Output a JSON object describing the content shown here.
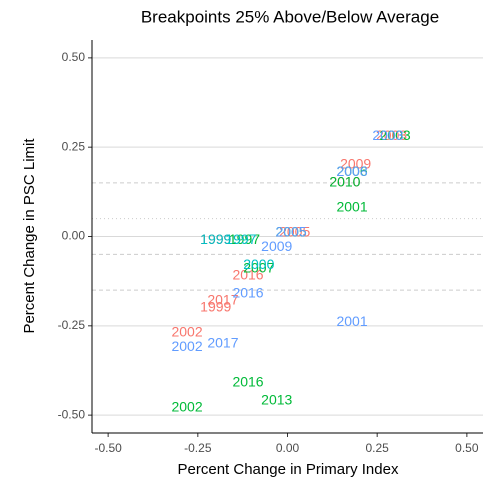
{
  "chart_data": {
    "type": "text-scatter",
    "title": "Breakpoints 25% Above/Below Average",
    "x_label": "Percent Change in Primary Index",
    "y_label": "Percent Change in PSC Limit",
    "xlim": [
      -0.545,
      0.545
    ],
    "ylim": [
      -0.55,
      0.55
    ],
    "xticks": [
      {
        "value": -0.5,
        "label": "-0.50"
      },
      {
        "value": -0.25,
        "label": "-0.25"
      },
      {
        "value": 0,
        "label": "0.00"
      },
      {
        "value": 0.25,
        "label": "0.25"
      },
      {
        "value": 0.5,
        "label": "0.50"
      }
    ],
    "yticks": [
      {
        "value": -0.5,
        "label": "-0.50"
      },
      {
        "value": -0.25,
        "label": "-0.25"
      },
      {
        "value": 0,
        "label": "0.00"
      },
      {
        "value": 0.25,
        "label": "0.25"
      },
      {
        "value": 0.5,
        "label": "0.50"
      }
    ],
    "grid": true,
    "reference_lines": [
      {
        "value": 0.15,
        "style": "dashed"
      },
      {
        "value": 0.05,
        "style": "dotted"
      },
      {
        "value": -0.05,
        "style": "dashed"
      },
      {
        "value": -0.15,
        "style": "dashed"
      }
    ],
    "series": [
      {
        "color": "#F8766D",
        "x": [
          0.29,
          0.19,
          0.16,
          0.02,
          -0.2,
          -0.11,
          -0.18,
          -0.2,
          -0.28
        ],
        "y": [
          0.28,
          0.2,
          0.15,
          0.01,
          -0.01,
          -0.11,
          -0.18,
          -0.2,
          -0.27
        ],
        "labels": [
          "2003",
          "2009",
          "2010",
          "2005",
          "1999",
          "2016",
          "2017",
          "1999",
          "2002"
        ]
      },
      {
        "color": "#00BA38",
        "x": [
          0.3,
          0.18,
          0.16,
          0.18,
          0.01,
          -0.08,
          -0.12,
          -0.11,
          -0.03,
          -0.28
        ],
        "y": [
          0.28,
          0.18,
          0.15,
          0.08,
          0.01,
          -0.09,
          -0.01,
          -0.41,
          -0.46,
          -0.48
        ],
        "labels": [
          "2003",
          "2006",
          "2010",
          "2001",
          "2005",
          "2007",
          "1997",
          "2016",
          "2013",
          "2002"
        ]
      },
      {
        "color": "#619CFF",
        "x": [
          0.28,
          0.18,
          0.01,
          -0.03,
          -0.11,
          0.18,
          -0.28,
          -0.18
        ],
        "y": [
          0.28,
          0.18,
          0.01,
          -0.03,
          -0.16,
          -0.24,
          -0.31,
          -0.3
        ],
        "labels": [
          "2003",
          "2008",
          "2005",
          "2009",
          "2016",
          "2001",
          "2002",
          "2017"
        ]
      },
      {
        "color": "#00BFC4",
        "x": [
          -0.2,
          -0.13,
          -0.08
        ],
        "y": [
          -0.01,
          -0.01,
          -0.08
        ],
        "labels": [
          "1999",
          "1997",
          "2000"
        ]
      }
    ]
  }
}
